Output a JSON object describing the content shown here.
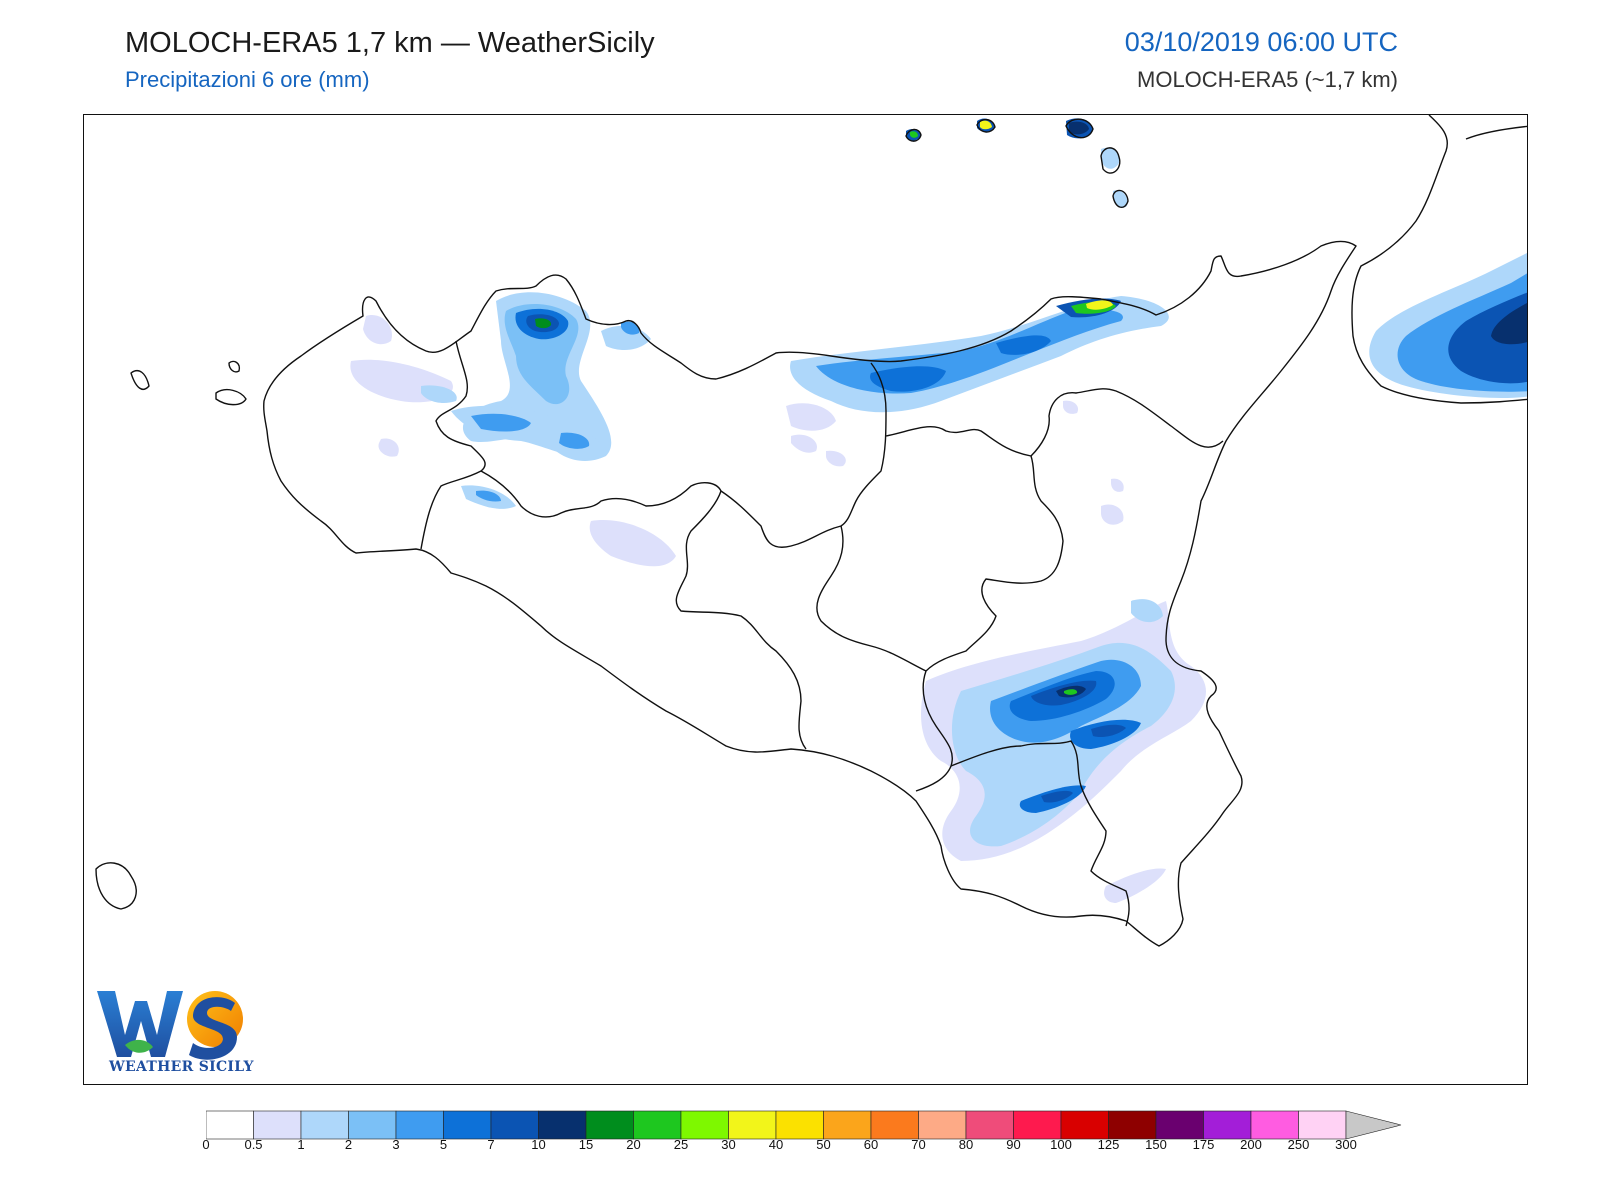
{
  "header": {
    "title": "MOLOCH-ERA5 1,7 km — WeatherSicily",
    "subtitle": "Precipitazioni 6 ore (mm)",
    "valid_time": "03/10/2019 06:00 UTC",
    "model_resolution": "MOLOCH-ERA5 (~1,7 km)"
  },
  "logo": {
    "letters": "WS",
    "caption": "WEATHER SICILY"
  },
  "legend": {
    "ticks": [
      "0",
      "0.5",
      "1",
      "2",
      "3",
      "5",
      "7",
      "10",
      "15",
      "20",
      "25",
      "30",
      "40",
      "50",
      "60",
      "70",
      "80",
      "90",
      "100",
      "125",
      "150",
      "175",
      "200",
      "250",
      "300"
    ],
    "colors": [
      "#ffffff",
      "#dde0fb",
      "#aed7fa",
      "#7bc0f6",
      "#3f9cf0",
      "#0d71d8",
      "#0b54b3",
      "#07306e",
      "#008d1d",
      "#1ec71f",
      "#7ef800",
      "#f2f51a",
      "#fbe100",
      "#fba51b",
      "#fb7a1d",
      "#fdaa86",
      "#ef4c7a",
      "#fe1a4e",
      "#d90000",
      "#8e0000",
      "#6a006f",
      "#a31ed8",
      "#ff5ce1",
      "#ffd2f4"
    ],
    "overflow_color": "#c8c8c8"
  },
  "colors": {
    "coast": "#111111",
    "title_blue": "#1565c0"
  }
}
